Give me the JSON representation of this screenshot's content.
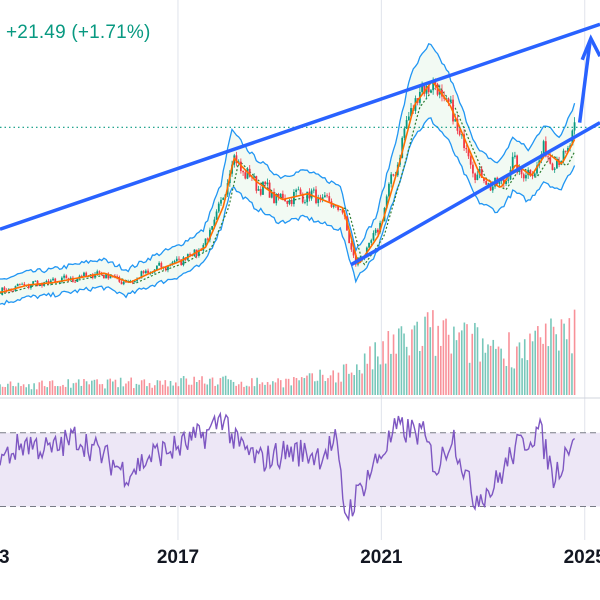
{
  "header": {
    "change_text": "+21.49 (+1.71%)"
  },
  "colors": {
    "up": "#089981",
    "down": "#f23645",
    "trendline": "#2962ff",
    "bollinger": "#2196f3",
    "ma_fast": "#ff6d00",
    "ma_slow": "#2e7d32",
    "rsi": "#7e57c2",
    "rsi_band": "#ede7f6",
    "last_price_line": "#089981",
    "axis_text": "#131722"
  },
  "chart_data": [
    {
      "type": "line",
      "panel": "price",
      "x_ticks": [
        "2017",
        "2021",
        "2025"
      ],
      "x_range": [
        2013.5,
        2025.3
      ],
      "y_range": [
        500,
        3200
      ],
      "x": [
        2013.5,
        2014.0,
        2014.5,
        2015.0,
        2015.5,
        2016.0,
        2016.5,
        2017.0,
        2017.5,
        2017.85,
        2018.05,
        2018.5,
        2019.0,
        2019.5,
        2019.9,
        2020.2,
        2020.5,
        2020.9,
        2021.3,
        2021.6,
        2021.95,
        2022.3,
        2022.6,
        2022.9,
        2023.3,
        2023.6,
        2023.9,
        2024.2,
        2024.5,
        2024.8
      ],
      "series": [
        {
          "values": [
            820,
            880,
            900,
            940,
            980,
            900,
            1000,
            1080,
            1200,
            1550,
            1950,
            1750,
            1600,
            1650,
            1580,
            1530,
            1050,
            1300,
            1900,
            2400,
            2600,
            2400,
            2100,
            1800,
            1700,
            1900,
            1800,
            2000,
            1900,
            2150
          ]
        }
      ],
      "last_price_level": 2210
    },
    {
      "type": "bar",
      "panel": "volume",
      "x": [
        2013.5,
        2014.5,
        2015.5,
        2016.5,
        2017.5,
        2018.5,
        2019.5,
        2020.0,
        2020.5,
        2021.0,
        2021.5,
        2022.0,
        2022.5,
        2023.0,
        2023.5,
        2024.0,
        2024.5,
        2024.8
      ],
      "values": [
        10,
        12,
        13,
        14,
        16,
        14,
        16,
        22,
        30,
        45,
        62,
        68,
        60,
        55,
        52,
        58,
        60,
        70
      ]
    },
    {
      "type": "line",
      "panel": "rsi",
      "y_range": [
        20,
        85
      ],
      "band": [
        30,
        70
      ],
      "x": [
        2013.5,
        2014.0,
        2014.5,
        2015.0,
        2015.5,
        2016.0,
        2016.5,
        2017.0,
        2017.6,
        2017.9,
        2018.1,
        2018.6,
        2019.2,
        2019.8,
        2020.1,
        2020.3,
        2020.8,
        2021.3,
        2021.8,
        2022.1,
        2022.4,
        2022.8,
        2023.2,
        2023.6,
        2024.1,
        2024.4,
        2024.7,
        2024.8
      ],
      "series": [
        {
          "values": [
            55,
            65,
            60,
            68,
            58,
            48,
            58,
            62,
            70,
            80,
            65,
            55,
            60,
            58,
            65,
            25,
            50,
            72,
            70,
            50,
            70,
            35,
            40,
            60,
            72,
            45,
            65,
            70
          ]
        }
      ]
    }
  ]
}
